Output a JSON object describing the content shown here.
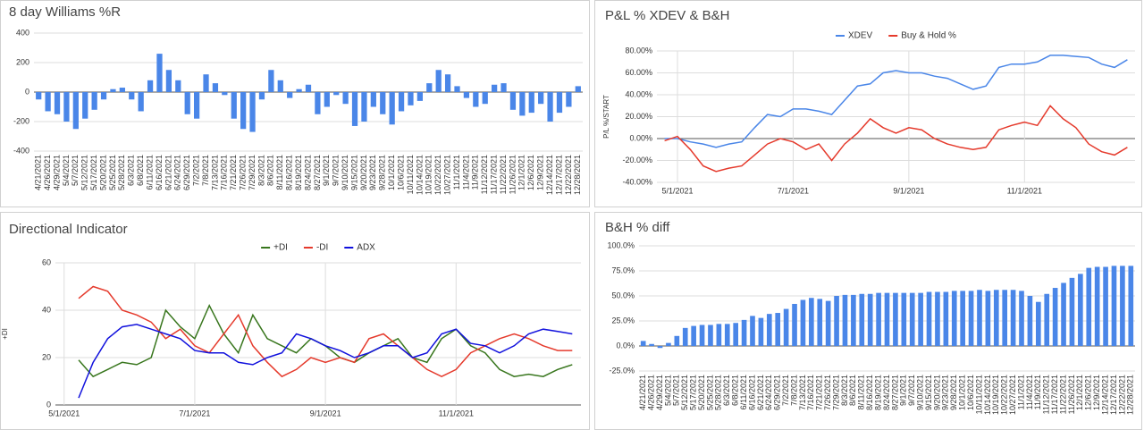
{
  "chart_data": [
    {
      "type": "bar",
      "title": "8 day Williams %R",
      "color": "#4a86e8",
      "grid": true,
      "categories": [
        "4/21/2021",
        "4/26/2021",
        "4/29/2021",
        "5/4/2021",
        "5/7/2021",
        "5/12/2021",
        "5/17/2021",
        "5/20/2021",
        "5/25/2021",
        "5/28/2021",
        "6/3/2021",
        "6/8/2021",
        "6/11/2021",
        "6/16/2021",
        "6/21/2021",
        "6/24/2021",
        "6/29/2021",
        "7/2/2021",
        "7/8/2021",
        "7/13/2021",
        "7/16/2021",
        "7/21/2021",
        "7/26/2021",
        "7/29/2021",
        "8/3/2021",
        "8/6/2021",
        "8/11/2021",
        "8/16/2021",
        "8/19/2021",
        "8/24/2021",
        "8/27/2021",
        "9/1/2021",
        "9/7/2021",
        "9/10/2021",
        "9/15/2021",
        "9/20/2021",
        "9/23/2021",
        "9/28/2021",
        "10/1/2021",
        "10/6/2021",
        "10/11/2021",
        "10/14/2021",
        "10/19/2021",
        "10/22/2021",
        "10/27/2021",
        "11/1/2021",
        "11/4/2021",
        "11/9/2021",
        "11/12/2021",
        "11/17/2021",
        "11/22/2021",
        "11/26/2021",
        "12/1/2021",
        "12/6/2021",
        "12/9/2021",
        "12/14/2021",
        "12/17/2021",
        "12/22/2021",
        "12/28/2021"
      ],
      "values": [
        -50,
        -130,
        -150,
        -200,
        -250,
        -180,
        -120,
        -50,
        20,
        30,
        -50,
        -130,
        80,
        260,
        150,
        80,
        -150,
        -180,
        120,
        60,
        -20,
        -180,
        -250,
        -270,
        -50,
        150,
        80,
        -40,
        20,
        50,
        -150,
        -100,
        -20,
        -80,
        -230,
        -200,
        -100,
        -150,
        -220,
        -130,
        -90,
        -60,
        60,
        150,
        120,
        40,
        -40,
        -100,
        -80,
        50,
        60,
        -120,
        -160,
        -140,
        -80,
        -200,
        -140,
        -100,
        40
      ],
      "ylim": [
        -400,
        400
      ],
      "yticks": [
        -400,
        -200,
        0,
        200,
        400
      ]
    },
    {
      "type": "line",
      "title": "P&L % XDEV & B&H",
      "y_label": "P/L %/START",
      "grid": true,
      "legend": "top",
      "categories": [
        null,
        "5/1/2021",
        null,
        null,
        null,
        null,
        null,
        null,
        null,
        null,
        "7/1/2021",
        null,
        null,
        null,
        null,
        null,
        null,
        null,
        null,
        "9/1/2021",
        null,
        null,
        null,
        null,
        null,
        null,
        null,
        null,
        "11/1/2021",
        null,
        null,
        null,
        null,
        null,
        null,
        null,
        null
      ],
      "series": [
        {
          "name": "XDEV",
          "color": "#4a86e8",
          "values": [
            0,
            0,
            -3,
            -5,
            -8,
            -5,
            -3,
            10,
            22,
            20,
            27,
            27,
            25,
            22,
            35,
            48,
            50,
            60,
            62,
            60,
            60,
            57,
            55,
            50,
            45,
            48,
            65,
            68,
            68,
            70,
            76,
            76,
            75,
            74,
            68,
            65,
            72
          ]
        },
        {
          "name": "Buy & Hold %",
          "color": "#e53a2c",
          "values": [
            -2,
            2,
            -10,
            -25,
            -30,
            -27,
            -25,
            -15,
            -5,
            0,
            -3,
            -10,
            -5,
            -20,
            -5,
            5,
            18,
            10,
            5,
            10,
            8,
            0,
            -5,
            -8,
            -10,
            -8,
            8,
            12,
            15,
            12,
            30,
            18,
            10,
            -5,
            -12,
            -15,
            -8
          ]
        }
      ],
      "ylim": [
        -40,
        80
      ],
      "yticks": [
        {
          "value": -40,
          "label": "-40.00%"
        },
        {
          "value": -20,
          "label": "-20.00%"
        },
        {
          "value": 0,
          "label": "0.00%"
        },
        {
          "value": 20,
          "label": "20.00%"
        },
        {
          "value": 40,
          "label": "40.00%"
        },
        {
          "value": 60,
          "label": "60.00%"
        },
        {
          "value": 80,
          "label": "80.00%"
        }
      ]
    },
    {
      "type": "line",
      "title": "Directional Indicator",
      "y_label": "+DI",
      "grid": true,
      "legend": "top",
      "categories": [
        "5/1/2021",
        null,
        null,
        null,
        null,
        null,
        null,
        null,
        null,
        "7/1/2021",
        null,
        null,
        null,
        null,
        null,
        null,
        null,
        null,
        "9/1/2021",
        null,
        null,
        null,
        null,
        null,
        null,
        null,
        null,
        "11/1/2021",
        null,
        null,
        null,
        null,
        null,
        null,
        null,
        null
      ],
      "series": [
        {
          "name": "+DI",
          "color": "#38761d",
          "values": [
            null,
            19,
            12,
            15,
            18,
            17,
            20,
            40,
            33,
            28,
            42,
            30,
            22,
            38,
            28,
            25,
            22,
            28,
            25,
            20,
            18,
            22,
            25,
            28,
            20,
            18,
            28,
            32,
            25,
            22,
            15,
            12,
            13,
            12,
            15,
            17
          ]
        },
        {
          "name": "-DI",
          "color": "#e53a2c",
          "values": [
            null,
            45,
            50,
            48,
            40,
            38,
            35,
            28,
            32,
            25,
            22,
            30,
            38,
            25,
            18,
            12,
            15,
            20,
            18,
            20,
            18,
            28,
            30,
            25,
            20,
            15,
            12,
            15,
            22,
            25,
            28,
            30,
            28,
            25,
            23,
            23
          ]
        },
        {
          "name": "ADX",
          "color": "#1111dd",
          "values": [
            null,
            3,
            18,
            28,
            33,
            34,
            32,
            30,
            28,
            23,
            22,
            22,
            18,
            17,
            20,
            22,
            30,
            28,
            25,
            23,
            20,
            22,
            25,
            25,
            20,
            22,
            30,
            32,
            26,
            25,
            22,
            25,
            30,
            32,
            31,
            30
          ]
        }
      ],
      "ylim": [
        0,
        60
      ],
      "yticks": [
        0,
        20,
        40,
        60
      ]
    },
    {
      "type": "bar",
      "title": "B&H % diff",
      "color": "#4a86e8",
      "grid": true,
      "categories": [
        "4/21/2021",
        "4/26/2021",
        "4/29/2021",
        "5/4/2021",
        "5/7/2021",
        "5/12/2021",
        "5/17/2021",
        "5/20/2021",
        "5/25/2021",
        "5/28/2021",
        "6/3/2021",
        "6/8/2021",
        "6/11/2021",
        "6/16/2021",
        "6/21/2021",
        "6/24/2021",
        "6/29/2021",
        "7/2/2021",
        "7/8/2021",
        "7/13/2021",
        "7/16/2021",
        "7/21/2021",
        "7/26/2021",
        "7/29/2021",
        "8/3/2021",
        "8/6/2021",
        "8/11/2021",
        "8/16/2021",
        "8/19/2021",
        "8/24/2021",
        "8/27/2021",
        "9/1/2021",
        "9/7/2021",
        "9/10/2021",
        "9/15/2021",
        "9/20/2021",
        "9/23/2021",
        "9/28/2021",
        "10/1/2021",
        "10/6/2021",
        "10/11/2021",
        "10/14/2021",
        "10/19/2021",
        "10/22/2021",
        "10/27/2021",
        "11/1/2021",
        "11/4/2021",
        "11/9/2021",
        "11/12/2021",
        "11/17/2021",
        "11/22/2021",
        "11/26/2021",
        "12/1/2021",
        "12/6/2021",
        "12/9/2021",
        "12/14/2021",
        "12/17/2021",
        "12/22/2021",
        "12/28/2021"
      ],
      "values": [
        5,
        2,
        -2,
        3,
        10,
        18,
        20,
        21,
        21,
        22,
        22,
        23,
        26,
        30,
        28,
        32,
        33,
        37,
        42,
        46,
        48,
        47,
        45,
        50,
        51,
        51,
        52,
        52,
        53,
        53,
        53,
        53,
        53,
        53,
        54,
        54,
        54,
        55,
        55,
        55,
        56,
        55,
        56,
        56,
        56,
        55,
        50,
        44,
        52,
        58,
        63,
        68,
        72,
        78,
        79,
        79,
        80,
        80,
        80
      ],
      "ylim": [
        -25,
        100
      ],
      "yticks": [
        {
          "value": -25,
          "label": "-25.0%"
        },
        {
          "value": 0,
          "label": "0.0%"
        },
        {
          "value": 25,
          "label": "25.0%"
        },
        {
          "value": 50,
          "label": "50.0%"
        },
        {
          "value": 75,
          "label": "75.0%"
        },
        {
          "value": 100,
          "label": "100.0%"
        }
      ]
    }
  ]
}
